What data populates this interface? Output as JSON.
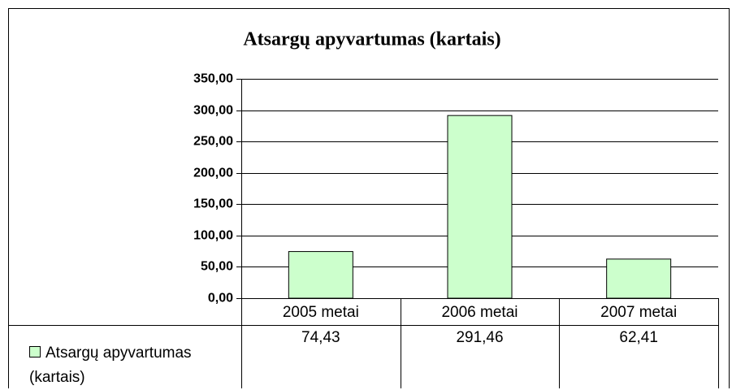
{
  "chart_data": {
    "type": "bar",
    "title": "Atsargų apyvartumas (kartais)",
    "categories": [
      "2005 metai",
      "2006 metai",
      "2007 metai"
    ],
    "series": [
      {
        "name": "Atsargų apyvartumas (kartais)",
        "color": "#ccffcc",
        "values": [
          74.43,
          291.46,
          62.41
        ],
        "value_labels": [
          "74,43",
          "291,46",
          "62,41"
        ]
      }
    ],
    "ylim": [
      0,
      350
    ],
    "yticks": [
      {
        "value": 0,
        "label": "0,00"
      },
      {
        "value": 50,
        "label": "50,00"
      },
      {
        "value": 100,
        "label": "100,00"
      },
      {
        "value": 150,
        "label": "150,00"
      },
      {
        "value": 200,
        "label": "200,00"
      },
      {
        "value": 250,
        "label": "250,00"
      },
      {
        "value": 300,
        "label": "300,00"
      },
      {
        "value": 350,
        "label": "350,00"
      }
    ],
    "grid": true
  }
}
